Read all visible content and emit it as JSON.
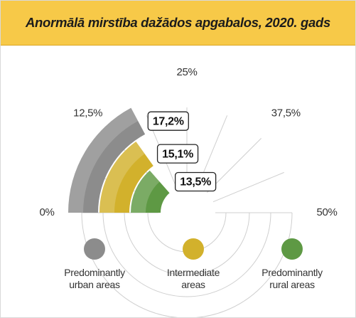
{
  "chart_data": {
    "type": "radial_bar",
    "title": "Anormālā mirstība dažādos apgabalos, 2020. gads",
    "categories": [
      "Predominantly urban areas",
      "Intermediate areas",
      "Predominantly rural areas"
    ],
    "values": [
      17.2,
      15.1,
      13.5
    ],
    "value_labels": [
      "17,2%",
      "15,1%",
      "13,5%"
    ],
    "colors": [
      "#8c8c8c",
      "#d2b12c",
      "#5e9944"
    ],
    "ylim": [
      0,
      50
    ],
    "yticks": [
      {
        "value": 0,
        "label": "0%"
      },
      {
        "value": 12.5,
        "label": "12,5%"
      },
      {
        "value": 25,
        "label": "25%"
      },
      {
        "value": 37.5,
        "label": "37,5%"
      },
      {
        "value": 50,
        "label": "50%"
      }
    ],
    "grid": true
  }
}
